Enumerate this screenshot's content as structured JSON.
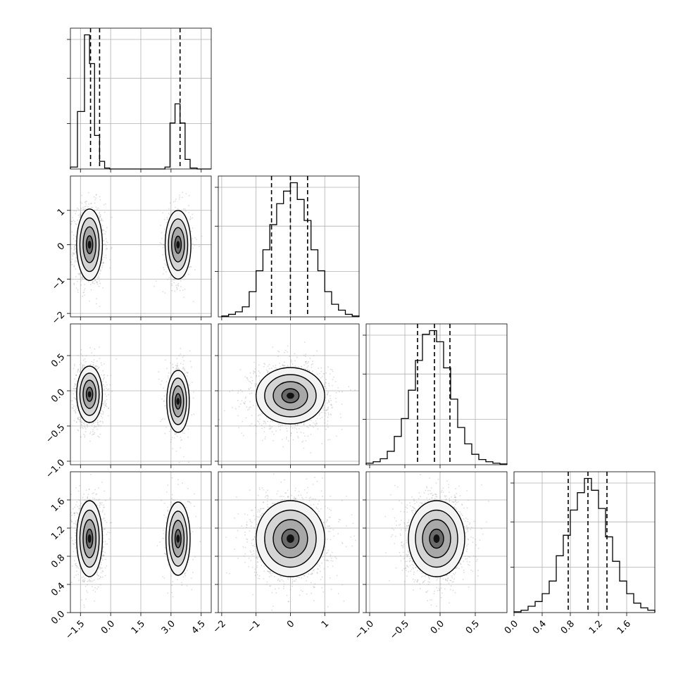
{
  "chart_data": {
    "type": "corner",
    "parameters": [
      "",
      "",
      "",
      ""
    ],
    "grid": true,
    "ranges": [
      [
        -2.0,
        5.0
      ],
      [
        -2.1,
        2.0
      ],
      [
        -1.05,
        0.95
      ],
      [
        0.0,
        2.0
      ]
    ],
    "ticks": [
      [
        -1.5,
        0.0,
        1.5,
        3.0,
        4.5
      ],
      [
        -2,
        -1,
        0,
        1
      ],
      [
        -1.0,
        -0.5,
        0.0,
        0.5
      ],
      [
        0.0,
        0.4,
        0.8,
        1.2,
        1.6
      ]
    ],
    "tick_labels": [
      [
        "−1.5",
        "0.0",
        "1.5",
        "3.0",
        "4.5"
      ],
      [
        "−2",
        "−1",
        "0",
        "1"
      ],
      [
        "−1.0",
        "−0.5",
        "0.0",
        "0.5"
      ],
      [
        "0.0",
        "0.4",
        "0.8",
        "1.2",
        "1.6"
      ]
    ],
    "quantiles": [
      [
        -1.0,
        -0.55,
        3.45
      ],
      [
        -0.55,
        0.0,
        0.5
      ],
      [
        -0.32,
        -0.08,
        0.14
      ],
      [
        0.77,
        1.05,
        1.32
      ]
    ],
    "histograms": [
      {
        "edges": [
          -2.0,
          -1.65,
          -1.3,
          -1.05,
          -0.8,
          -0.55,
          -0.3,
          -0.05,
          0.3,
          0.7,
          1.1,
          1.5,
          1.9,
          2.3,
          2.7,
          2.95,
          3.2,
          3.45,
          3.7,
          3.95,
          4.3,
          5.0
        ],
        "counts": [
          2,
          60,
          140,
          110,
          35,
          8,
          1,
          0,
          0,
          0,
          0,
          0,
          0,
          0,
          2,
          48,
          68,
          48,
          10,
          1,
          0
        ]
      },
      {
        "edges": [
          -2.0,
          -1.8,
          -1.6,
          -1.4,
          -1.2,
          -1.0,
          -0.8,
          -0.6,
          -0.4,
          -0.2,
          0.0,
          0.2,
          0.4,
          0.6,
          0.8,
          1.0,
          1.2,
          1.4,
          1.6,
          1.8,
          2.0
        ],
        "counts": [
          1,
          3,
          6,
          12,
          30,
          55,
          80,
          110,
          135,
          150,
          160,
          140,
          115,
          80,
          55,
          30,
          15,
          8,
          3,
          1
        ]
      },
      {
        "edges": [
          -1.05,
          -0.95,
          -0.85,
          -0.75,
          -0.65,
          -0.55,
          -0.45,
          -0.35,
          -0.25,
          -0.15,
          -0.05,
          0.05,
          0.15,
          0.25,
          0.35,
          0.45,
          0.55,
          0.65,
          0.75,
          0.85,
          0.95
        ],
        "counts": [
          2,
          4,
          8,
          18,
          38,
          62,
          100,
          140,
          175,
          180,
          165,
          130,
          88,
          50,
          28,
          14,
          7,
          4,
          2,
          1
        ]
      },
      {
        "edges": [
          0.0,
          0.1,
          0.2,
          0.3,
          0.4,
          0.5,
          0.6,
          0.7,
          0.8,
          0.9,
          1.0,
          1.1,
          1.2,
          1.3,
          1.4,
          1.5,
          1.6,
          1.7,
          1.8,
          1.9,
          2.0
        ],
        "counts": [
          1,
          3,
          8,
          14,
          24,
          40,
          72,
          98,
          130,
          152,
          170,
          155,
          132,
          96,
          65,
          40,
          24,
          12,
          6,
          3
        ]
      }
    ],
    "scatter_2d": [
      {
        "x": 1,
        "y": 0,
        "modes": [
          {
            "cx": -1.05,
            "cy": 0.0,
            "sx": 0.32,
            "sy": 0.52,
            "n": 3200
          },
          {
            "cx": 3.35,
            "cy": 0.0,
            "sx": 0.32,
            "sy": 0.5,
            "n": 1300
          }
        ]
      },
      {
        "x": 2,
        "y": 0,
        "modes": [
          {
            "cx": -1.05,
            "cy": -0.05,
            "sx": 0.32,
            "sy": 0.2,
            "n": 3200
          },
          {
            "cx": 3.35,
            "cy": -0.15,
            "sx": 0.28,
            "sy": 0.22,
            "n": 1300
          }
        ]
      },
      {
        "x": 2,
        "y": 1,
        "modes": [
          {
            "cx": 0.0,
            "cy": -0.07,
            "sx": 0.5,
            "sy": 0.2,
            "n": 4500
          }
        ]
      },
      {
        "x": 3,
        "y": 0,
        "modes": [
          {
            "cx": -1.05,
            "cy": 1.05,
            "sx": 0.32,
            "sy": 0.27,
            "n": 3200
          },
          {
            "cx": 3.35,
            "cy": 1.05,
            "sx": 0.3,
            "sy": 0.26,
            "n": 1300
          }
        ]
      },
      {
        "x": 3,
        "y": 1,
        "modes": [
          {
            "cx": 0.0,
            "cy": 1.05,
            "sx": 0.5,
            "sy": 0.27,
            "n": 4500
          }
        ]
      },
      {
        "x": 3,
        "y": 2,
        "modes": [
          {
            "cx": -0.05,
            "cy": 1.05,
            "sx": 0.2,
            "sy": 0.27,
            "n": 4500
          }
        ]
      }
    ]
  }
}
